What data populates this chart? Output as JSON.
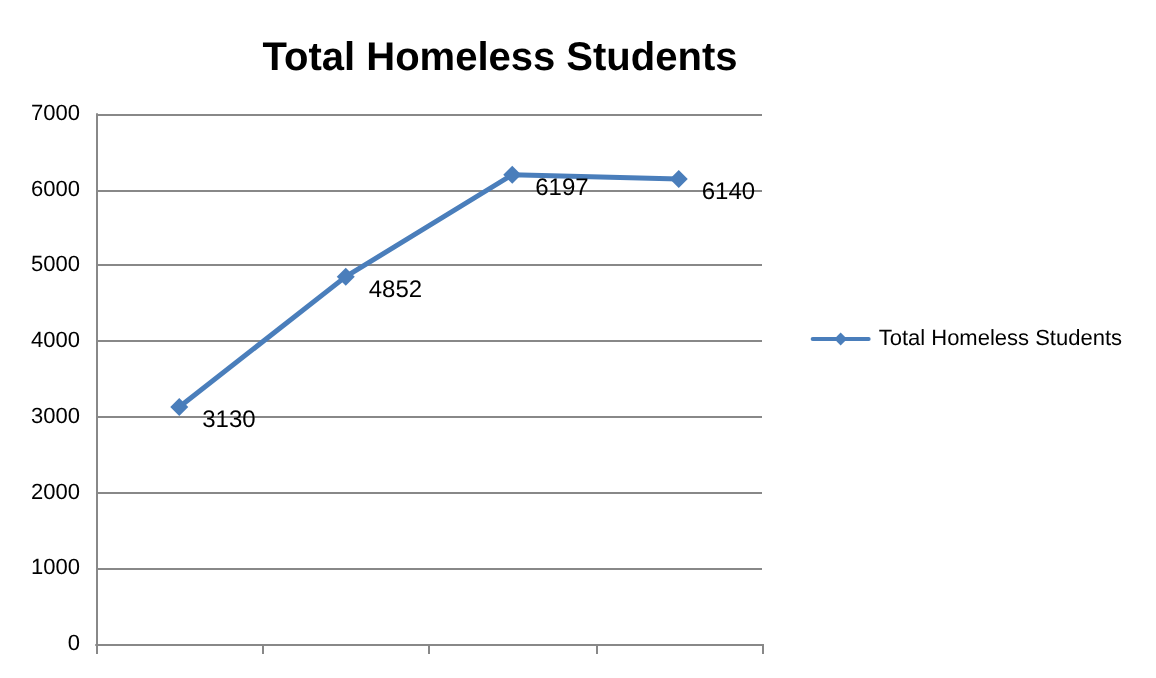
{
  "chart_data": {
    "type": "line",
    "title": "Total Homeless Students",
    "categories": [
      null,
      null,
      null,
      null
    ],
    "series": [
      {
        "name": "Total Homeless Students",
        "color": "#4a7ebb",
        "values": [
          3130,
          4852,
          6197,
          6140
        ]
      }
    ],
    "ylim": [
      0,
      7000
    ],
    "yticks": [
      0,
      1000,
      2000,
      3000,
      4000,
      5000,
      6000,
      7000
    ],
    "grid": "y",
    "legend": "right",
    "marker": "diamond",
    "line_style": "solid",
    "data_labels": true
  }
}
